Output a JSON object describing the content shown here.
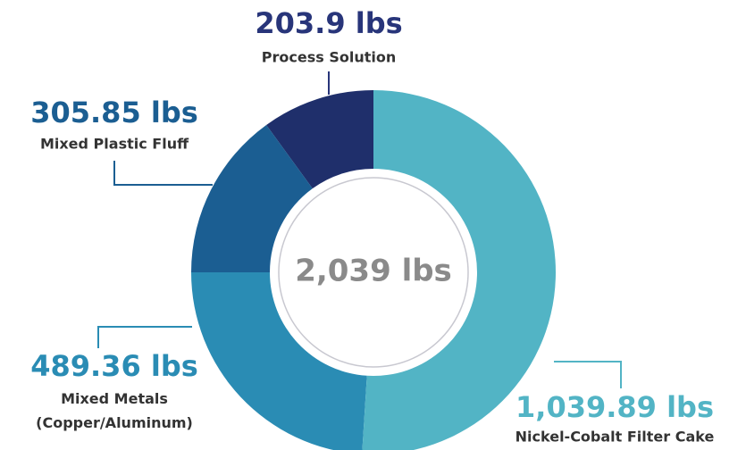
{
  "chart_data": {
    "type": "donut",
    "center_label": "2,039 lbs",
    "categories": [
      "Nickel-Cobalt Filter Cake",
      "Mixed Metals (Copper/Aluminum)",
      "Mixed Plastic Fluff",
      "Process Solution"
    ],
    "values": [
      1039.89,
      489.36,
      305.85,
      203.9
    ],
    "value_labels": [
      "1,039.89 lbs",
      "489.36 lbs",
      "305.85 lbs",
      "203.9 lbs"
    ],
    "colors": [
      "#52b4c5",
      "#2a8cb4",
      "#1b5e92",
      "#1f2f6b"
    ]
  }
}
